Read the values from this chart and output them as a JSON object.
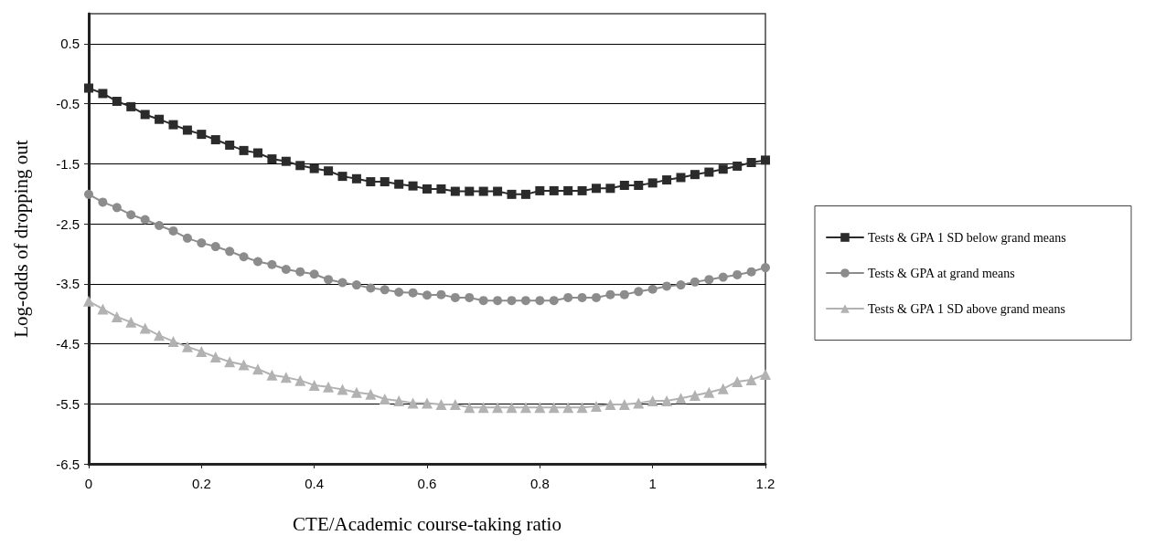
{
  "chart_data": {
    "type": "line",
    "xlabel": "CTE/Academic course-taking ratio",
    "ylabel": "Log-odds of dropping out",
    "x": [
      0,
      0.025,
      0.05,
      0.075,
      0.1,
      0.125,
      0.15,
      0.175,
      0.2,
      0.225,
      0.25,
      0.275,
      0.3,
      0.325,
      0.35,
      0.375,
      0.4,
      0.425,
      0.45,
      0.475,
      0.5,
      0.525,
      0.55,
      0.575,
      0.6,
      0.625,
      0.65,
      0.675,
      0.7,
      0.725,
      0.75,
      0.775,
      0.8,
      0.825,
      0.85,
      0.875,
      0.9,
      0.925,
      0.95,
      0.975,
      1,
      1.025,
      1.05,
      1.075,
      1.1,
      1.125,
      1.15,
      1.175,
      1.2
    ],
    "series": [
      {
        "name": "Tests & GPA 1 SD below grand means",
        "color": "#2b2b2b",
        "marker": "square",
        "values": [
          -0.24,
          -0.33,
          -0.46,
          -0.55,
          -0.68,
          -0.76,
          -0.85,
          -0.94,
          -1.01,
          -1.1,
          -1.19,
          -1.28,
          -1.32,
          -1.42,
          -1.46,
          -1.53,
          -1.58,
          -1.62,
          -1.71,
          -1.75,
          -1.8,
          -1.8,
          -1.84,
          -1.87,
          -1.92,
          -1.92,
          -1.96,
          -1.96,
          -1.96,
          -1.96,
          -2.01,
          -2.01,
          -1.95,
          -1.95,
          -1.95,
          -1.95,
          -1.91,
          -1.91,
          -1.86,
          -1.86,
          -1.82,
          -1.77,
          -1.73,
          -1.68,
          -1.64,
          -1.59,
          -1.54,
          -1.48,
          -1.44
        ]
      },
      {
        "name": "Tests & GPA at grand means",
        "color": "#8c8c8c",
        "marker": "circle",
        "values": [
          -2.01,
          -2.14,
          -2.23,
          -2.35,
          -2.43,
          -2.53,
          -2.62,
          -2.74,
          -2.82,
          -2.88,
          -2.96,
          -3.05,
          -3.13,
          -3.18,
          -3.26,
          -3.3,
          -3.34,
          -3.43,
          -3.48,
          -3.52,
          -3.57,
          -3.6,
          -3.64,
          -3.65,
          -3.69,
          -3.68,
          -3.73,
          -3.73,
          -3.78,
          -3.78,
          -3.78,
          -3.78,
          -3.78,
          -3.78,
          -3.73,
          -3.73,
          -3.73,
          -3.68,
          -3.68,
          -3.63,
          -3.59,
          -3.54,
          -3.52,
          -3.47,
          -3.43,
          -3.39,
          -3.35,
          -3.3,
          -3.23
        ]
      },
      {
        "name": "Tests & GPA 1 SD above grand means",
        "color": "#b2b2b2",
        "marker": "triangle",
        "values": [
          -3.79,
          -3.92,
          -4.05,
          -4.14,
          -4.24,
          -4.36,
          -4.46,
          -4.55,
          -4.63,
          -4.72,
          -4.8,
          -4.85,
          -4.92,
          -5.02,
          -5.06,
          -5.11,
          -5.19,
          -5.22,
          -5.26,
          -5.31,
          -5.34,
          -5.42,
          -5.45,
          -5.49,
          -5.49,
          -5.51,
          -5.51,
          -5.56,
          -5.56,
          -5.56,
          -5.56,
          -5.56,
          -5.56,
          -5.56,
          -5.56,
          -5.56,
          -5.54,
          -5.51,
          -5.51,
          -5.49,
          -5.45,
          -5.45,
          -5.41,
          -5.36,
          -5.31,
          -5.25,
          -5.13,
          -5.1,
          -5.01
        ]
      }
    ],
    "xlim": [
      0,
      1.2
    ],
    "xticks": [
      0,
      0.2,
      0.4,
      0.6,
      0.8,
      1,
      1.2
    ],
    "ylim": [
      -6.5,
      1
    ],
    "yticks": [
      -6.5,
      -5.5,
      -4.5,
      -3.5,
      -2.5,
      -1.5,
      -0.5,
      0.5
    ],
    "grid": "y",
    "legend": "right",
    "line_style": "solid"
  }
}
